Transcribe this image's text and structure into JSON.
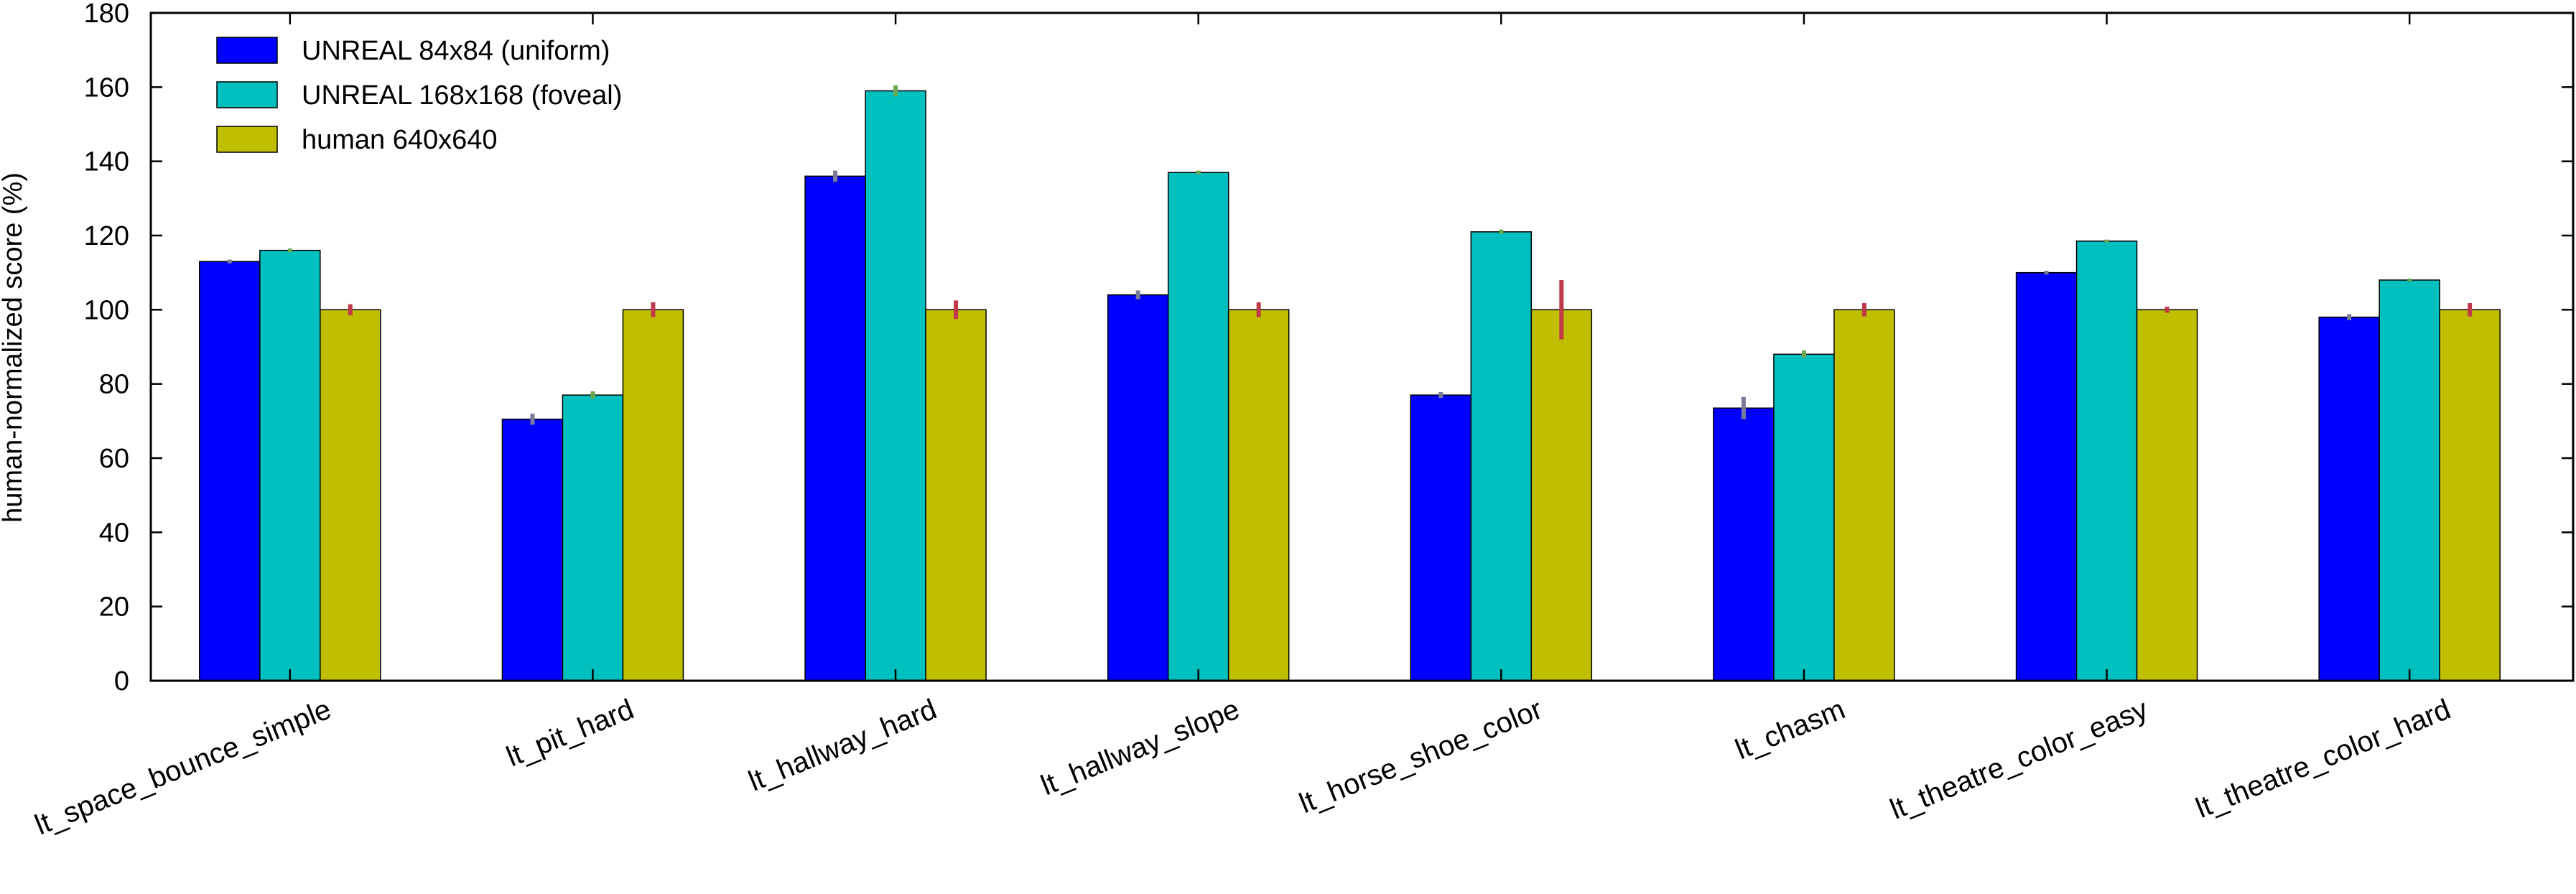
{
  "chart_data": {
    "type": "bar",
    "title": "",
    "xlabel": "",
    "ylabel": "human-normalized score (%)",
    "ylim": [
      0,
      180
    ],
    "yticks": [
      0,
      20,
      40,
      60,
      80,
      100,
      120,
      140,
      160,
      180
    ],
    "grid": false,
    "legend_position": "top-left",
    "categories": [
      "lt_space_bounce_simple",
      "lt_pit_hard",
      "lt_hallway_hard",
      "lt_hallway_slope",
      "lt_horse_shoe_color",
      "lt_chasm",
      "lt_theatre_color_easy",
      "lt_theatre_color_hard"
    ],
    "series": [
      {
        "name": "UNREAL 84x84 (uniform)",
        "color": "#0000ff",
        "error_color": "#7a7a99",
        "values": [
          113,
          70.5,
          136,
          104,
          77,
          73.5,
          110,
          98
        ],
        "errors": [
          0.5,
          1.5,
          1.5,
          1.2,
          0.8,
          3.0,
          0.5,
          0.8
        ]
      },
      {
        "name": "UNREAL 168x168 (foveal)",
        "color": "#00bfbf",
        "error_color": "#6aa84f",
        "values": [
          116,
          77,
          159,
          137,
          121,
          88,
          118.5,
          108
        ],
        "errors": [
          0.5,
          1.0,
          1.5,
          0.5,
          0.6,
          1.0,
          0.4,
          0.4
        ]
      },
      {
        "name": "human 640x640",
        "color": "#bfbf00",
        "error_color": "#c0394b",
        "values": [
          100,
          100,
          100,
          100,
          100,
          100,
          100,
          100
        ],
        "errors": [
          1.5,
          2.0,
          2.5,
          2.0,
          8.0,
          1.8,
          0.8,
          1.8
        ]
      }
    ]
  }
}
